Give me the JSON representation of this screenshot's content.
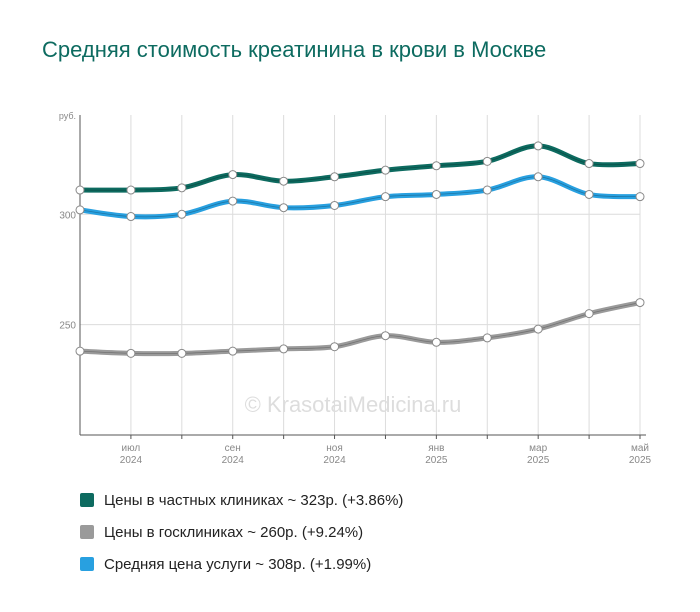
{
  "title": "Средняя стоимость креатинина в крови в Москве",
  "watermark": "© KrasotaiMedicina.ru",
  "chart_data": {
    "type": "line",
    "y_unit_label": "руб.",
    "ylim": [
      200,
      345
    ],
    "yticks": [
      250,
      300
    ],
    "x": [
      "2024-06",
      "2024-07",
      "2024-08",
      "2024-09",
      "2024-10",
      "2024-11",
      "2024-12",
      "2025-01",
      "2025-02",
      "2025-03",
      "2025-04",
      "2025-05"
    ],
    "xtick_labels": [
      {
        "month": "июл",
        "year": "2024",
        "index": 1
      },
      {
        "month": "сен",
        "year": "2024",
        "index": 3
      },
      {
        "month": "ноя",
        "year": "2024",
        "index": 5
      },
      {
        "month": "янв",
        "year": "2025",
        "index": 7
      },
      {
        "month": "мар",
        "year": "2025",
        "index": 9
      },
      {
        "month": "май",
        "year": "2025",
        "index": 11
      }
    ],
    "grid": true,
    "legend_position": "bottom",
    "series": [
      {
        "name": "Цены в госклиниках",
        "color": "#9a9a9a",
        "values": [
          238,
          237,
          237,
          238,
          239,
          240,
          245,
          242,
          244,
          248,
          255,
          260
        ]
      },
      {
        "name": "Средняя цена услуги",
        "color": "#28a0e0",
        "values": [
          302,
          299,
          300,
          306,
          303,
          304,
          308,
          309,
          311,
          317,
          309,
          308
        ]
      },
      {
        "name": "Цены в частных клиниках",
        "color": "#0d6b60",
        "values": [
          311,
          311,
          312,
          318,
          315,
          317,
          320,
          322,
          324,
          331,
          323,
          323
        ]
      }
    ]
  },
  "legend": [
    {
      "label": "Цены в частных клиниках ~ 323р. (+3.86%)",
      "color": "#0d6b60"
    },
    {
      "label": "Цены в госклиниках ~ 260р. (+9.24%)",
      "color": "#9a9a9a"
    },
    {
      "label": "Средняя цена услуги ~ 308р. (+1.99%)",
      "color": "#28a0e0"
    }
  ]
}
